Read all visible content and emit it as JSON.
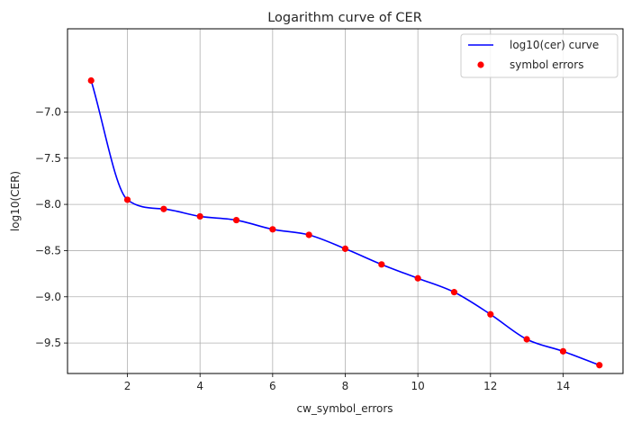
{
  "chart_data": {
    "type": "line",
    "title": "Logarithm curve of CER",
    "xlabel": "cw_symbol_errors",
    "ylabel": "log10(CER)",
    "xlim": [
      0.35,
      15.65
    ],
    "ylim": [
      -9.83,
      -6.1
    ],
    "x_ticks": [
      2,
      4,
      6,
      8,
      10,
      12,
      14
    ],
    "y_ticks": [
      -9.5,
      -9.0,
      -8.5,
      -8.0,
      -7.5,
      -7.0
    ],
    "grid": true,
    "legend": {
      "placement": "top-right"
    },
    "series": [
      {
        "name": "log10(cer) curve",
        "kind": "line",
        "color": "#0000ff",
        "x": [
          1,
          2,
          3,
          4,
          5,
          6,
          7,
          8,
          9,
          10,
          11,
          12,
          13,
          14,
          15
        ],
        "values": [
          -6.66,
          -7.95,
          -8.05,
          -8.13,
          -8.17,
          -8.27,
          -8.33,
          -8.48,
          -8.65,
          -8.8,
          -8.95,
          -9.19,
          -9.46,
          -9.59,
          -9.74
        ]
      },
      {
        "name": "symbol errors",
        "kind": "scatter",
        "color": "#ff0000",
        "x": [
          1,
          2,
          3,
          4,
          5,
          6,
          7,
          8,
          9,
          10,
          11,
          12,
          13,
          14,
          15
        ],
        "values": [
          -6.66,
          -7.95,
          -8.05,
          -8.13,
          -8.17,
          -8.27,
          -8.33,
          -8.48,
          -8.65,
          -8.8,
          -8.95,
          -9.19,
          -9.46,
          -9.59,
          -9.74
        ]
      }
    ]
  }
}
